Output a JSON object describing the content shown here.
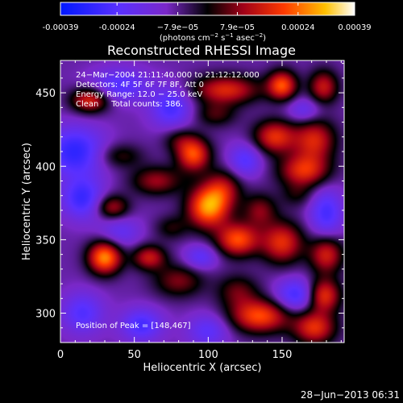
{
  "chart_data": {
    "type": "heatmap",
    "title": "Reconstructed RHESSI Image",
    "xlabel": "Heliocentric X (arcsec)",
    "ylabel": "Heliocentric Y (arcsec)",
    "xlim": [
      0,
      192
    ],
    "ylim": [
      280,
      472
    ],
    "x_ticks": [
      0,
      50,
      100,
      150
    ],
    "y_ticks": [
      300,
      350,
      400,
      450
    ],
    "colorbar": {
      "min": -0.00039,
      "max": 0.00039,
      "tick_values": [
        -0.00039,
        -0.00024,
        -7.9e-05,
        7.9e-05,
        0.00024,
        0.00039
      ],
      "tick_labels": [
        "-0.00039",
        "-0.00024",
        "−7.9e−05",
        "7.9e−05",
        "0.00024",
        "0.00039"
      ],
      "units": {
        "pre": "(photons cm",
        "exp1": "−2",
        "mid1": " s",
        "exp2": "−1",
        "mid2": " asec",
        "exp3": "−2",
        "post": ")"
      }
    },
    "annotations": {
      "time": "24−Mar−2004 21:11:40.000 to 21:12:12.000",
      "detectors": "Detectors: 4F 5F 6F 7F 8F, Att 0",
      "energy": "Energy Range: 12.0 − 25.0 keV",
      "clean": "Clean     Total counts: 386.",
      "peak": "Position of Peak = [148,467]"
    },
    "sources": [
      {
        "x": 20,
        "y": 445,
        "v": 0.00026,
        "sx": 9,
        "sy": 6
      },
      {
        "x": 40,
        "y": 455,
        "v": -0.00016,
        "sx": 14,
        "sy": 8
      },
      {
        "x": 75,
        "y": 440,
        "v": -0.00018,
        "sx": 10,
        "sy": 10
      },
      {
        "x": 112,
        "y": 452,
        "v": 0.00025,
        "sx": 16,
        "sy": 7
      },
      {
        "x": 150,
        "y": 455,
        "v": 0.0003,
        "sx": 7,
        "sy": 7
      },
      {
        "x": 178,
        "y": 454,
        "v": 0.00022,
        "sx": 7,
        "sy": 8
      },
      {
        "x": 165,
        "y": 438,
        "v": -0.00012,
        "sx": 8,
        "sy": 6
      },
      {
        "x": 105,
        "y": 435,
        "v": 0.00012,
        "sx": 10,
        "sy": 6
      },
      {
        "x": 80,
        "y": 418,
        "v": 0.0001,
        "sx": 8,
        "sy": 6
      },
      {
        "x": 145,
        "y": 420,
        "v": 0.00026,
        "sx": 10,
        "sy": 8
      },
      {
        "x": 172,
        "y": 418,
        "v": 0.00024,
        "sx": 10,
        "sy": 10
      },
      {
        "x": 10,
        "y": 410,
        "v": -0.00022,
        "sx": 14,
        "sy": 12
      },
      {
        "x": 40,
        "y": 407,
        "v": 0.00012,
        "sx": 11,
        "sy": 6
      },
      {
        "x": 90,
        "y": 408,
        "v": 0.0003,
        "sx": 8,
        "sy": 8
      },
      {
        "x": 125,
        "y": 404,
        "v": -0.00016,
        "sx": 8,
        "sy": 8
      },
      {
        "x": 165,
        "y": 397,
        "v": 0.00026,
        "sx": 12,
        "sy": 8
      },
      {
        "x": 110,
        "y": 385,
        "v": 0.00018,
        "sx": 9,
        "sy": 9
      },
      {
        "x": 65,
        "y": 390,
        "v": 0.00018,
        "sx": 12,
        "sy": 7
      },
      {
        "x": 35,
        "y": 372,
        "v": 0.0002,
        "sx": 8,
        "sy": 6
      },
      {
        "x": 15,
        "y": 378,
        "v": -0.0002,
        "sx": 10,
        "sy": 10
      },
      {
        "x": 100,
        "y": 372,
        "v": 0.00036,
        "sx": 10,
        "sy": 10
      },
      {
        "x": 135,
        "y": 370,
        "v": 0.00016,
        "sx": 8,
        "sy": 8
      },
      {
        "x": 160,
        "y": 380,
        "v": 8e-05,
        "sx": 8,
        "sy": 6
      },
      {
        "x": 180,
        "y": 368,
        "v": -0.00018,
        "sx": 8,
        "sy": 12
      },
      {
        "x": 75,
        "y": 358,
        "v": 0.0001,
        "sx": 8,
        "sy": 6
      },
      {
        "x": 40,
        "y": 355,
        "v": -0.00012,
        "sx": 10,
        "sy": 8
      },
      {
        "x": 120,
        "y": 350,
        "v": 0.0003,
        "sx": 10,
        "sy": 8
      },
      {
        "x": 150,
        "y": 348,
        "v": 0.00026,
        "sx": 10,
        "sy": 10
      },
      {
        "x": 180,
        "y": 340,
        "v": 0.00024,
        "sx": 8,
        "sy": 9
      },
      {
        "x": 30,
        "y": 338,
        "v": 0.00036,
        "sx": 8,
        "sy": 8
      },
      {
        "x": 60,
        "y": 338,
        "v": 0.00022,
        "sx": 8,
        "sy": 6
      },
      {
        "x": 95,
        "y": 338,
        "v": -0.00014,
        "sx": 8,
        "sy": 6
      },
      {
        "x": 80,
        "y": 322,
        "v": 0.00016,
        "sx": 12,
        "sy": 8
      },
      {
        "x": 120,
        "y": 315,
        "v": 0.00014,
        "sx": 10,
        "sy": 8
      },
      {
        "x": 160,
        "y": 312,
        "v": -0.0002,
        "sx": 10,
        "sy": 8
      },
      {
        "x": 178,
        "y": 312,
        "v": 0.00028,
        "sx": 8,
        "sy": 8
      },
      {
        "x": 135,
        "y": 298,
        "v": 0.0003,
        "sx": 14,
        "sy": 8
      },
      {
        "x": 172,
        "y": 290,
        "v": 0.00026,
        "sx": 10,
        "sy": 8
      },
      {
        "x": 15,
        "y": 300,
        "v": -0.00016,
        "sx": 10,
        "sy": 10
      },
      {
        "x": 55,
        "y": 292,
        "v": -0.00018,
        "sx": 10,
        "sy": 8
      },
      {
        "x": 100,
        "y": 288,
        "v": -0.00014,
        "sx": 10,
        "sy": 8
      }
    ]
  },
  "footer": {
    "date": "28−Jun−2013 06:31"
  }
}
